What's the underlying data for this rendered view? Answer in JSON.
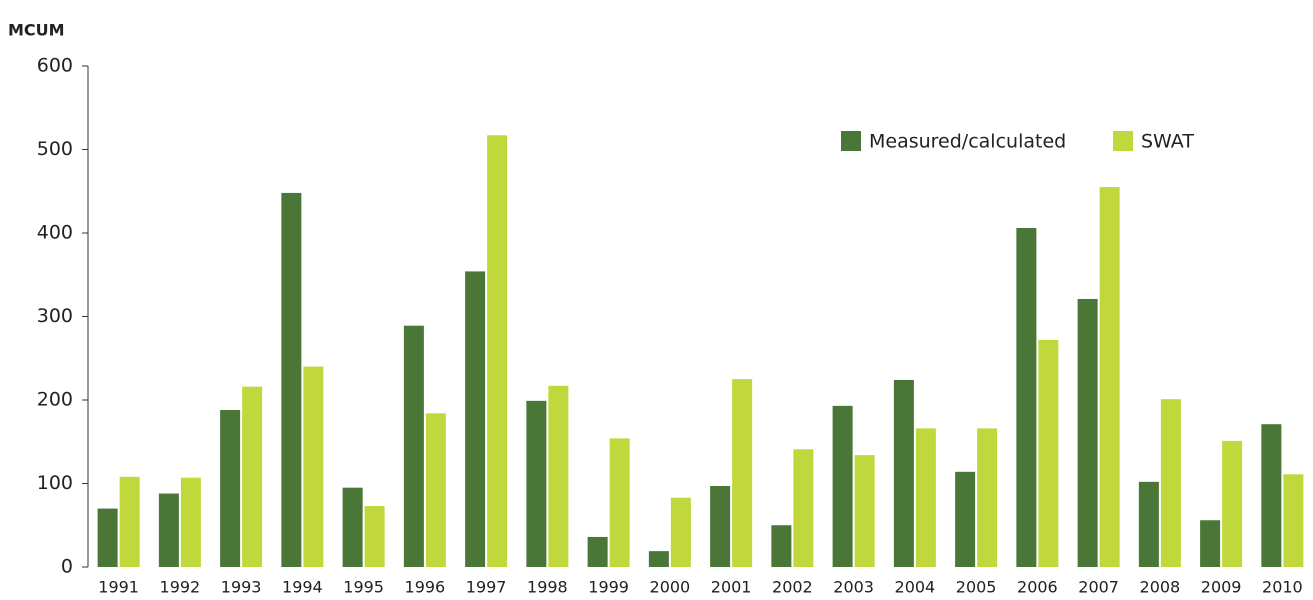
{
  "chart_data": {
    "type": "bar",
    "ylabel": "MCUM",
    "categories": [
      "1991",
      "1992",
      "1993",
      "1994",
      "1995",
      "1996",
      "1997",
      "1998",
      "1999",
      "2000",
      "2001",
      "2002",
      "2003",
      "2004",
      "2005",
      "2006",
      "2007",
      "2008",
      "2009",
      "2010"
    ],
    "series": [
      {
        "name": "Measured/calculated",
        "color": "#4a7637",
        "values": [
          70,
          88,
          188,
          448,
          95,
          289,
          354,
          199,
          36,
          19,
          97,
          50,
          193,
          224,
          114,
          406,
          321,
          102,
          56,
          171
        ]
      },
      {
        "name": "SWAT",
        "color": "#c0d83c",
        "values": [
          108,
          107,
          216,
          240,
          73,
          184,
          517,
          217,
          154,
          83,
          225,
          141,
          134,
          166,
          166,
          272,
          455,
          201,
          151,
          111
        ]
      }
    ],
    "ylim": [
      0,
      600
    ],
    "yticks": [
      0,
      100,
      200,
      300,
      400,
      500,
      600
    ],
    "grid": false,
    "legend": "upper right"
  }
}
